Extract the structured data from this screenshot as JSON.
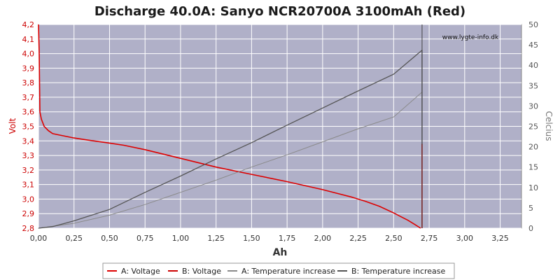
{
  "chart_data": {
    "type": "line",
    "title": "Discharge 40.0A: Sanyo NCR20700A 3100mAh (Red)",
    "xlabel": "Ah",
    "ylabel_left": "Volt",
    "ylabel_right": "Celcius",
    "watermark": "www.lygte-info.dk",
    "xlim": [
      0,
      3.4
    ],
    "ylim_left": [
      2.8,
      4.2
    ],
    "ylim_right": [
      0,
      50
    ],
    "x_ticks": [
      "0,00",
      "0,25",
      "0,50",
      "0,75",
      "1,00",
      "1,25",
      "1,50",
      "1,75",
      "2,00",
      "2,25",
      "2,50",
      "2,75",
      "3,00",
      "3,25"
    ],
    "y_left_ticks": [
      "2,8",
      "2,9",
      "3,0",
      "3,1",
      "3,2",
      "3,3",
      "3,4",
      "3,5",
      "3,6",
      "3,7",
      "3,8",
      "3,9",
      "4,0",
      "4,1",
      "4,2"
    ],
    "y_right_ticks": [
      "0",
      "5",
      "10",
      "15",
      "20",
      "25",
      "30",
      "35",
      "40",
      "45",
      "50"
    ],
    "grid": true,
    "legend_position": "bottom",
    "colors": {
      "plot_bg": "#b0b0c8",
      "grid": "#ffffff",
      "voltage_a": "#dd0000",
      "voltage_b": "#cc0000",
      "temp_a": "#8a8a8a",
      "temp_b": "#555555"
    },
    "series": [
      {
        "name": "A: Voltage",
        "axis": "left",
        "x": [
          0.0,
          0.005,
          0.01,
          0.02,
          0.04,
          0.07,
          0.1,
          0.15,
          0.25,
          0.35,
          0.5,
          0.6,
          0.75,
          1.0,
          1.25,
          1.5,
          1.75,
          2.0,
          2.1,
          2.2,
          2.3,
          2.4,
          2.5,
          2.55,
          2.6,
          2.65,
          2.69
        ],
        "y": [
          4.2,
          4.0,
          3.6,
          3.55,
          3.5,
          3.47,
          3.45,
          3.44,
          3.42,
          3.405,
          3.385,
          3.37,
          3.34,
          3.28,
          3.22,
          3.17,
          3.12,
          3.065,
          3.04,
          3.015,
          2.985,
          2.95,
          2.905,
          2.88,
          2.855,
          2.825,
          2.8
        ]
      },
      {
        "name": "B: Voltage",
        "axis": "left",
        "x": [
          2.7,
          2.7
        ],
        "y": [
          3.38,
          2.8
        ]
      },
      {
        "name": "A: Temperature increase",
        "axis": "right",
        "x": [
          0.0,
          0.25,
          0.5,
          0.75,
          1.0,
          1.25,
          1.5,
          1.75,
          2.0,
          2.25,
          2.5,
          2.7
        ],
        "y": [
          0.0,
          1.2,
          3.2,
          5.8,
          8.8,
          11.8,
          15.0,
          18.0,
          21.2,
          24.4,
          27.3,
          33.4
        ]
      },
      {
        "name": "B: Temperature increase",
        "axis": "right",
        "x": [
          0.0,
          0.1,
          0.25,
          0.5,
          0.75,
          1.0,
          1.25,
          1.5,
          1.75,
          2.0,
          2.25,
          2.5,
          2.7
        ],
        "y": [
          0.0,
          0.4,
          1.8,
          4.6,
          8.8,
          12.8,
          17.0,
          21.0,
          25.3,
          29.5,
          33.7,
          37.8,
          43.7
        ]
      }
    ],
    "b_temp_tail": {
      "x": 2.7,
      "y": [
        43.7,
        20.5
      ]
    }
  }
}
